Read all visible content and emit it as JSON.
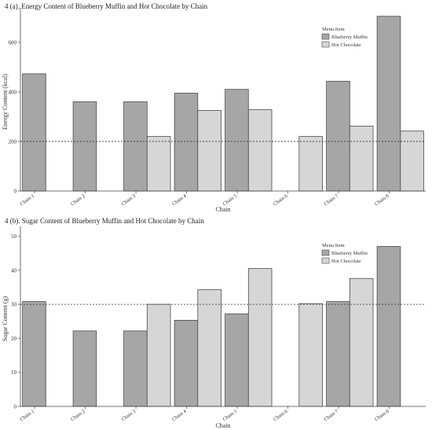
{
  "chart_data": [
    {
      "type": "bar",
      "title": "4 (a). Energy Content of Blueberry Muffin and Hot Chocolate by Chain",
      "xlabel": "Chain",
      "ylabel": "Energy Content (kcal)",
      "categories": [
        "Chain 1",
        "Chain 2",
        "Chain 3",
        "Chain 4",
        "Chain 5",
        "Chain 6",
        "Chain 7",
        "Chain 8"
      ],
      "series": [
        {
          "name": "Blueberry Muffin",
          "values": [
            473,
            360,
            360,
            395,
            410,
            null,
            443,
            705
          ]
        },
        {
          "name": "Hot Chocolate",
          "values": [
            null,
            null,
            220,
            325,
            328,
            220,
            262,
            242
          ]
        }
      ],
      "yticks": [
        0,
        200,
        400,
        600
      ],
      "ylim": [
        0,
        720
      ],
      "reference_line": 200,
      "legend_title": "Menu Item",
      "legend_position": "top-right",
      "grid": false,
      "colors": {
        "Blueberry Muffin": "#a6a6a6",
        "Hot Chocolate": "#d6d6d6"
      }
    },
    {
      "type": "bar",
      "title": "4 (b). Sugar Content of Blueberry Muffin and Hot Chocolate by Chain",
      "xlabel": "Chain",
      "ylabel": "Sugar Content (g)",
      "categories": [
        "Chain 1",
        "Chain 2",
        "Chain 3",
        "Chain 4",
        "Chain 5",
        "Chain 6",
        "Chain 7",
        "Chain 8"
      ],
      "series": [
        {
          "name": "Blueberry Muffin",
          "values": [
            30.8,
            22.2,
            22.2,
            25.3,
            27.2,
            null,
            30.8,
            47
          ]
        },
        {
          "name": "Hot Chocolate",
          "values": [
            null,
            null,
            30,
            34.3,
            40.5,
            30.2,
            37.6,
            null
          ]
        }
      ],
      "yticks": [
        0,
        10,
        20,
        30,
        40,
        50
      ],
      "ylim": [
        0,
        51.5
      ],
      "reference_line": 30,
      "legend_title": "Menu Item",
      "legend_position": "top-right",
      "grid": false,
      "colors": {
        "Blueberry Muffin": "#a6a6a6",
        "Hot Chocolate": "#d6d6d6"
      }
    }
  ]
}
